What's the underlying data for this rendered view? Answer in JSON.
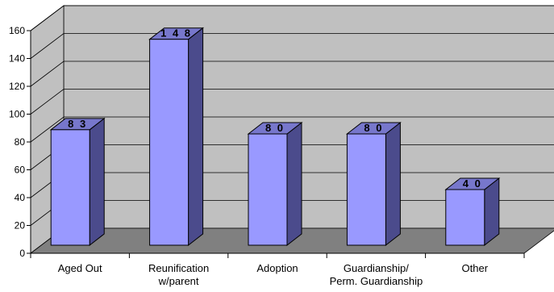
{
  "chart_data": {
    "type": "bar",
    "style": "3d-column",
    "categories": [
      [
        "Aged Out"
      ],
      [
        "Reunification",
        "w/parent"
      ],
      [
        "Adoption"
      ],
      [
        "Guardianship/",
        "Perm. Guardianship"
      ],
      [
        "Other"
      ]
    ],
    "values": [
      83,
      148,
      80,
      80,
      40
    ],
    "data_labels": [
      "8 3",
      "1 4 8",
      "8 0",
      "8 0",
      "4 0"
    ],
    "yticks": [
      "0",
      "20",
      "40",
      "60",
      "80",
      "100",
      "120",
      "140",
      "160"
    ],
    "ylim": [
      0,
      160
    ],
    "grid": true,
    "legend": "none",
    "colors": {
      "bar_front": "#9999ff",
      "bar_side": "#4b4b8c",
      "bar_top": "#7777cc",
      "wall": "#c0c0c0",
      "floor": "#808080",
      "gridline": "#000000"
    }
  }
}
